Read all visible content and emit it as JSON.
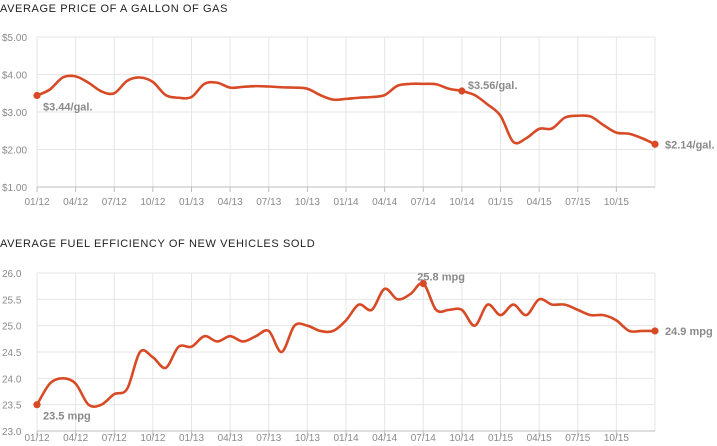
{
  "colors": {
    "line": "#d84a26",
    "grid": "#e6e6e6",
    "text": "#8a8a8a"
  },
  "chart_data": [
    {
      "type": "line",
      "title": "AVERAGE PRICE OF A GALLON OF GAS",
      "xlabel": "",
      "ylabel": "",
      "x_ticks": [
        "01/12",
        "04/12",
        "07/12",
        "10/12",
        "01/13",
        "04/13",
        "07/13",
        "10/13",
        "01/14",
        "04/14",
        "07/14",
        "10/14",
        "01/15",
        "04/15",
        "07/15",
        "10/15"
      ],
      "y_ticks": [
        "$1.00",
        "$2.00",
        "$3.00",
        "$4.00",
        "$5.00"
      ],
      "ylim": [
        1,
        5
      ],
      "grid": true,
      "series": [
        {
          "x": [
            0,
            1,
            2,
            3,
            4,
            5,
            6,
            7,
            8,
            9,
            10,
            11,
            12,
            13,
            14,
            15,
            16,
            17,
            18,
            19,
            20,
            21,
            22,
            23,
            24,
            25,
            26,
            27,
            28,
            29,
            30,
            31,
            32,
            33,
            34,
            35,
            36,
            37,
            38,
            39,
            40,
            41,
            42,
            43,
            44,
            45,
            46,
            47,
            48
          ],
          "values": [
            3.44,
            3.6,
            3.92,
            3.95,
            3.78,
            3.55,
            3.5,
            3.83,
            3.92,
            3.8,
            3.45,
            3.38,
            3.4,
            3.75,
            3.78,
            3.65,
            3.67,
            3.69,
            3.68,
            3.66,
            3.65,
            3.62,
            3.45,
            3.33,
            3.35,
            3.38,
            3.4,
            3.45,
            3.7,
            3.75,
            3.75,
            3.74,
            3.62,
            3.56,
            3.45,
            3.2,
            2.9,
            2.2,
            2.3,
            2.55,
            2.56,
            2.85,
            2.9,
            2.88,
            2.65,
            2.45,
            2.42,
            2.3,
            2.14
          ]
        }
      ],
      "annotations": [
        {
          "index": 0,
          "label": "$3.44/gal."
        },
        {
          "index": 33,
          "label": "$3.56/gal."
        },
        {
          "index": 48,
          "label": "$2.14/gal."
        }
      ]
    },
    {
      "type": "line",
      "title": "AVERAGE FUEL EFFICIENCY OF NEW VEHICLES SOLD",
      "xlabel": "",
      "ylabel": "",
      "x_ticks": [
        "01/12",
        "04/12",
        "07/12",
        "10/12",
        "01/13",
        "04/13",
        "07/13",
        "10/13",
        "01/14",
        "04/14",
        "07/14",
        "10/14",
        "01/15",
        "04/15",
        "07/15",
        "10/15"
      ],
      "y_ticks": [
        "23.0",
        "23.5",
        "24.0",
        "24.5",
        "25.0",
        "25.5",
        "26.0"
      ],
      "ylim": [
        23,
        26
      ],
      "grid": true,
      "series": [
        {
          "x": [
            0,
            1,
            2,
            3,
            4,
            5,
            6,
            7,
            8,
            9,
            10,
            11,
            12,
            13,
            14,
            15,
            16,
            17,
            18,
            19,
            20,
            21,
            22,
            23,
            24,
            25,
            26,
            27,
            28,
            29,
            30,
            31,
            32,
            33,
            34,
            35,
            36,
            37,
            38,
            39,
            40,
            41,
            42,
            43,
            44,
            45,
            46,
            47,
            48
          ],
          "values": [
            23.5,
            23.9,
            24.0,
            23.9,
            23.5,
            23.5,
            23.7,
            23.8,
            24.5,
            24.4,
            24.2,
            24.6,
            24.6,
            24.8,
            24.7,
            24.8,
            24.7,
            24.8,
            24.9,
            24.5,
            25.0,
            25.0,
            24.9,
            24.9,
            25.1,
            25.4,
            25.3,
            25.7,
            25.5,
            25.6,
            25.8,
            25.3,
            25.3,
            25.3,
            25.0,
            25.4,
            25.2,
            25.4,
            25.2,
            25.5,
            25.4,
            25.4,
            25.3,
            25.2,
            25.2,
            25.1,
            24.9,
            24.9,
            24.9
          ]
        }
      ],
      "annotations": [
        {
          "index": 0,
          "label": "23.5 mpg"
        },
        {
          "index": 30,
          "label": "25.8 mpg"
        },
        {
          "index": 48,
          "label": "24.9 mpg"
        }
      ]
    }
  ]
}
